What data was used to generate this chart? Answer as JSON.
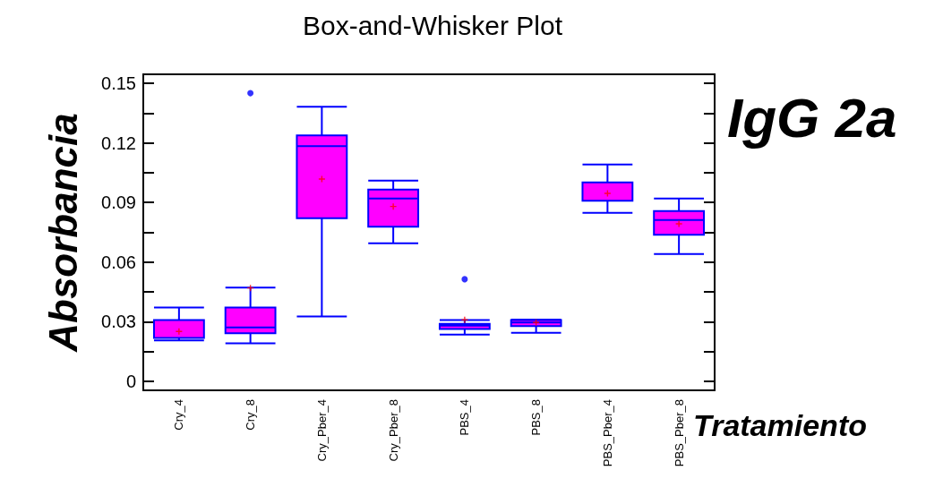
{
  "chart_data": {
    "type": "box",
    "title": "Box-and-Whisker Plot",
    "xlabel": "Tratamiento",
    "ylabel": "Absorbancia",
    "annotations": [
      "IgG 2a"
    ],
    "categories": [
      "Cry_4",
      "Cry_8",
      "Cry_Pber_4",
      "Cry_Pber_8",
      "PBS_4",
      "PBS_8",
      "PBS_Pber_4",
      "PBS_Pber_8"
    ],
    "series": [
      {
        "color": "#ff00ff",
        "boxes": [
          {
            "low": 0.0206,
            "q1": 0.0218,
            "median": 0.0218,
            "q3": 0.0309,
            "high": 0.0372,
            "mean": 0.0251
          },
          {
            "low": 0.0191,
            "q1": 0.0242,
            "median": 0.0271,
            "q3": 0.0372,
            "high": 0.0472,
            "mean": 0.047,
            "outliers": [
              0.145
            ]
          },
          {
            "low": 0.0327,
            "q1": 0.0821,
            "median": 0.1184,
            "q3": 0.1238,
            "high": 0.1382,
            "mean": 0.1018
          },
          {
            "low": 0.0695,
            "q1": 0.0778,
            "median": 0.092,
            "q3": 0.0965,
            "high": 0.101,
            "mean": 0.088
          },
          {
            "low": 0.0235,
            "q1": 0.0263,
            "median": 0.028,
            "q3": 0.0289,
            "high": 0.0309,
            "mean": 0.031,
            "outliers": [
              0.0514
            ]
          },
          {
            "low": 0.0244,
            "q1": 0.0278,
            "median": 0.0296,
            "q3": 0.0309,
            "high": 0.0311,
            "mean": 0.0296
          },
          {
            "low": 0.0848,
            "q1": 0.0909,
            "median": 0.0909,
            "q3": 0.1001,
            "high": 0.1091,
            "mean": 0.0946
          },
          {
            "low": 0.0641,
            "q1": 0.0738,
            "median": 0.0812,
            "q3": 0.0857,
            "high": 0.092,
            "mean": 0.0793
          }
        ]
      }
    ],
    "ylim": [
      -0.0045,
      0.1545
    ],
    "yticks": [
      0,
      {
        "value": 0.015,
        "label": null
      },
      0.03,
      {
        "value": 0.045,
        "label": null
      },
      0.06,
      {
        "value": 0.075,
        "label": null
      },
      0.09,
      {
        "value": 0.105,
        "label": null
      },
      0.12,
      {
        "value": 0.135,
        "label": null
      },
      0.15
    ]
  }
}
